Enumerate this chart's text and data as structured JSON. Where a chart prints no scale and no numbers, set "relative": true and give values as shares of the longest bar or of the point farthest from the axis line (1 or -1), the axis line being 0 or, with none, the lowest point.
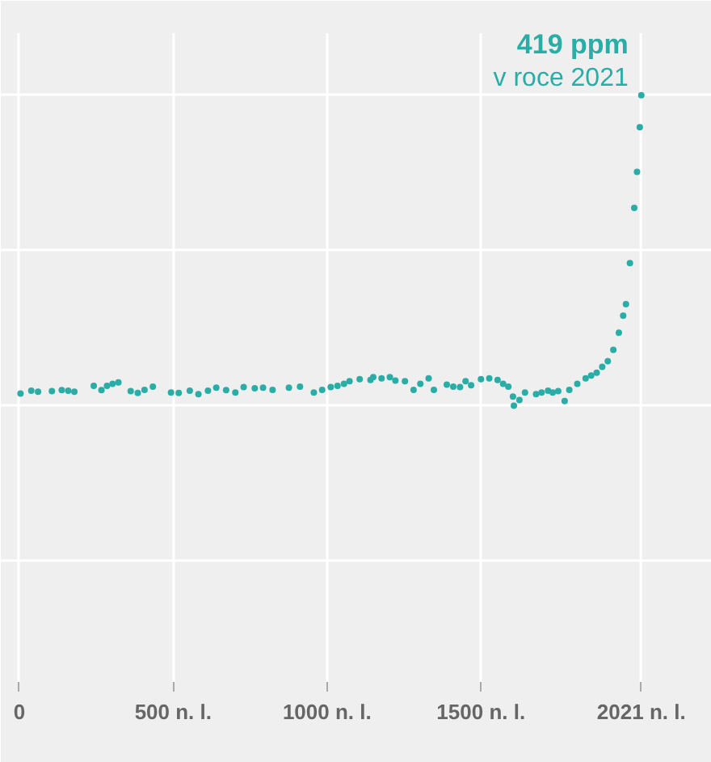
{
  "chart_data": {
    "type": "scatter",
    "relative": true,
    "grid": true,
    "marker": "circle",
    "tick_labels": "x",
    "x": [
      4,
      39,
      61,
      106,
      138,
      159,
      179,
      242,
      267,
      285,
      303,
      322,
      362,
      385,
      407,
      434,
      493,
      518,
      554,
      582,
      613,
      640,
      672,
      702,
      729,
      765,
      792,
      823,
      876,
      912,
      957,
      984,
      1012,
      1034,
      1055,
      1073,
      1106,
      1141,
      1150,
      1177,
      1204,
      1222,
      1253,
      1281,
      1303,
      1330,
      1347,
      1389,
      1410,
      1432,
      1450,
      1468,
      1500,
      1527,
      1554,
      1572,
      1589,
      1604,
      1607,
      1625,
      1643,
      1679,
      1697,
      1718,
      1733,
      1751,
      1772,
      1787,
      1813,
      1840,
      1858,
      1876,
      1894,
      1912,
      1930,
      1948,
      1962,
      1971,
      1984,
      1998,
      2007,
      2016,
      2021
    ],
    "series": [
      {
        "color": "#2aada6",
        "values": [
          0.039,
          0.048,
          0.045,
          0.047,
          0.05,
          0.048,
          0.045,
          0.064,
          0.05,
          0.064,
          0.07,
          0.075,
          0.047,
          0.041,
          0.051,
          0.061,
          0.042,
          0.041,
          0.048,
          0.037,
          0.048,
          0.058,
          0.05,
          0.042,
          0.06,
          0.056,
          0.058,
          0.051,
          0.058,
          0.061,
          0.042,
          0.051,
          0.06,
          0.064,
          0.07,
          0.079,
          0.085,
          0.083,
          0.092,
          0.088,
          0.092,
          0.081,
          0.079,
          0.051,
          0.07,
          0.088,
          0.051,
          0.068,
          0.061,
          0.06,
          0.079,
          0.066,
          0.085,
          0.088,
          0.083,
          0.07,
          0.061,
          0.029,
          0,
          0.018,
          0.042,
          0.037,
          0.042,
          0.048,
          0.042,
          0.047,
          0.015,
          0.051,
          0.07,
          0.088,
          0.097,
          0.106,
          0.125,
          0.143,
          0.18,
          0.235,
          0.29,
          0.327,
          0.459,
          0.637,
          0.753,
          0.897,
          1
        ]
      }
    ],
    "xlim": [
      -60,
      2250
    ],
    "xticks": [
      {
        "value": 0,
        "label": "0"
      },
      {
        "value": 500,
        "label": "500 n. l."
      },
      {
        "value": 1000,
        "label": "1000 n. l."
      },
      {
        "value": 1500,
        "label": "1500 n. l."
      },
      {
        "value": 2021,
        "label": "2021 n. l."
      }
    ],
    "annotations": [
      {
        "text": "419 ppm",
        "x": 2021,
        "y": 1
      },
      {
        "text": "v roce 2021",
        "x": 2021,
        "y": 1
      }
    ]
  }
}
